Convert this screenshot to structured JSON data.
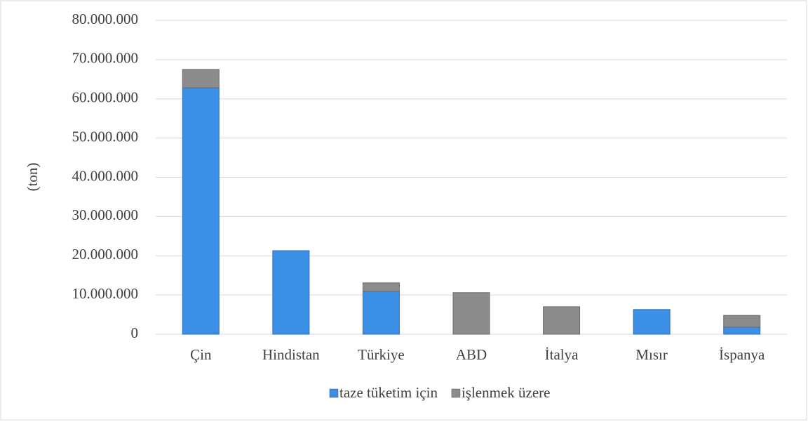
{
  "chart_data": {
    "type": "stacked_bar",
    "y_label": "(ton)",
    "categories": [
      "Çin",
      "Hindistan",
      "Türkiye",
      "ABD",
      "İtalya",
      "Mısır",
      "İspanya"
    ],
    "series": [
      {
        "name": "taze tüketim için",
        "color": "#3b8fe4",
        "values": [
          62800000,
          21300000,
          10900000,
          0,
          0,
          6300000,
          1800000
        ]
      },
      {
        "name": "işlenmek üzere",
        "color": "#8c8c8c",
        "values": [
          4700000,
          0,
          2200000,
          10600000,
          7000000,
          0,
          3000000
        ]
      }
    ],
    "ylim": [
      0,
      80000000
    ],
    "yticks": [
      0,
      {
        "value": 10000000,
        "label": "10.000.000"
      },
      {
        "value": 20000000,
        "label": "20.000.000"
      },
      {
        "value": 30000000,
        "label": "30.000.000"
      },
      {
        "value": 40000000,
        "label": "40.000.000"
      },
      {
        "value": 50000000,
        "label": "50.000.000"
      },
      {
        "value": 60000000,
        "label": "60.000.000"
      },
      {
        "value": 70000000,
        "label": "70.000.000"
      },
      {
        "value": 80000000,
        "label": "80.000.000"
      }
    ],
    "grid": true,
    "legend": "bottom"
  }
}
